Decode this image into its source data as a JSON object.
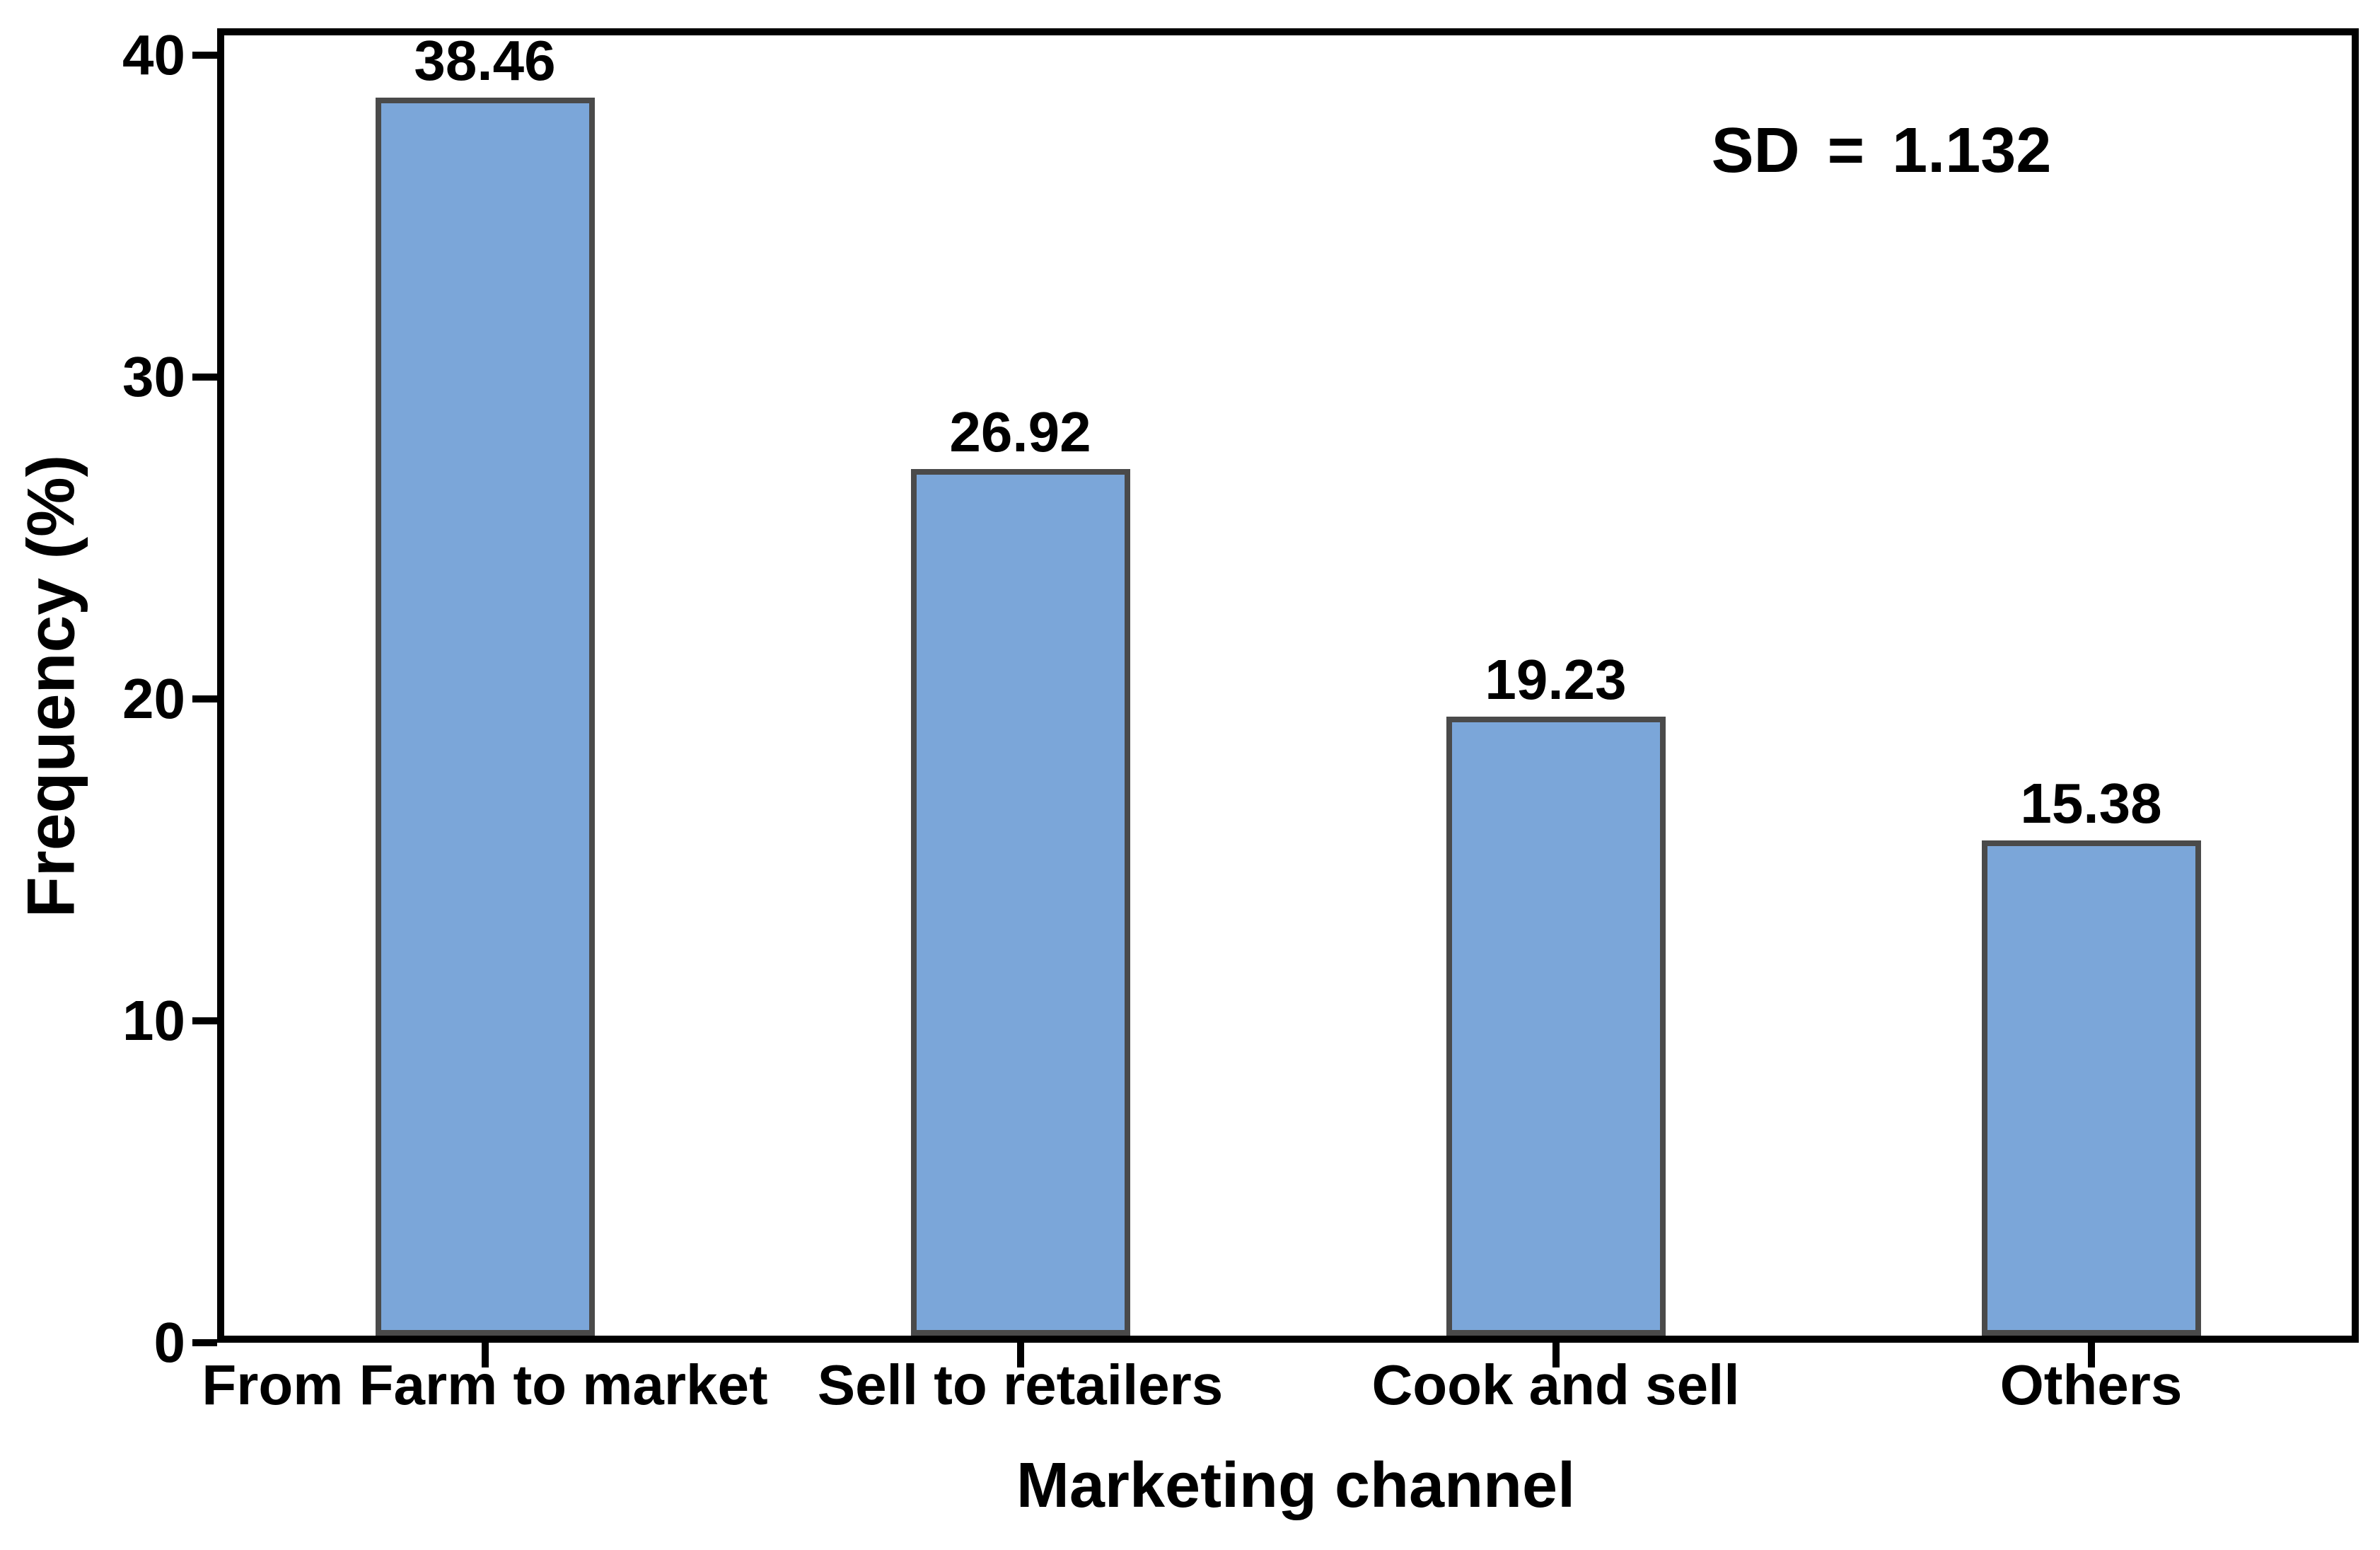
{
  "chart_data": {
    "type": "bar",
    "categories": [
      "From Farm to market",
      "Sell to retailers",
      "Cook and sell",
      "Others"
    ],
    "values": [
      38.46,
      26.92,
      19.23,
      15.38
    ],
    "value_labels": [
      "38.46",
      "26.92",
      "19.23",
      "15.38"
    ],
    "xlabel": "Marketing channel",
    "ylabel": "Frequency (%)",
    "yticks": [
      "0",
      "10",
      "20",
      "30",
      "40"
    ],
    "ylim": [
      0,
      40.84
    ],
    "annotation": "SD = 1.132",
    "grid": false,
    "legend_position": "none",
    "colors": {
      "bar_fill": "#7BA6D9",
      "bar_border": "#4A4A4A",
      "axis": "#000000",
      "text": "#000000"
    }
  }
}
